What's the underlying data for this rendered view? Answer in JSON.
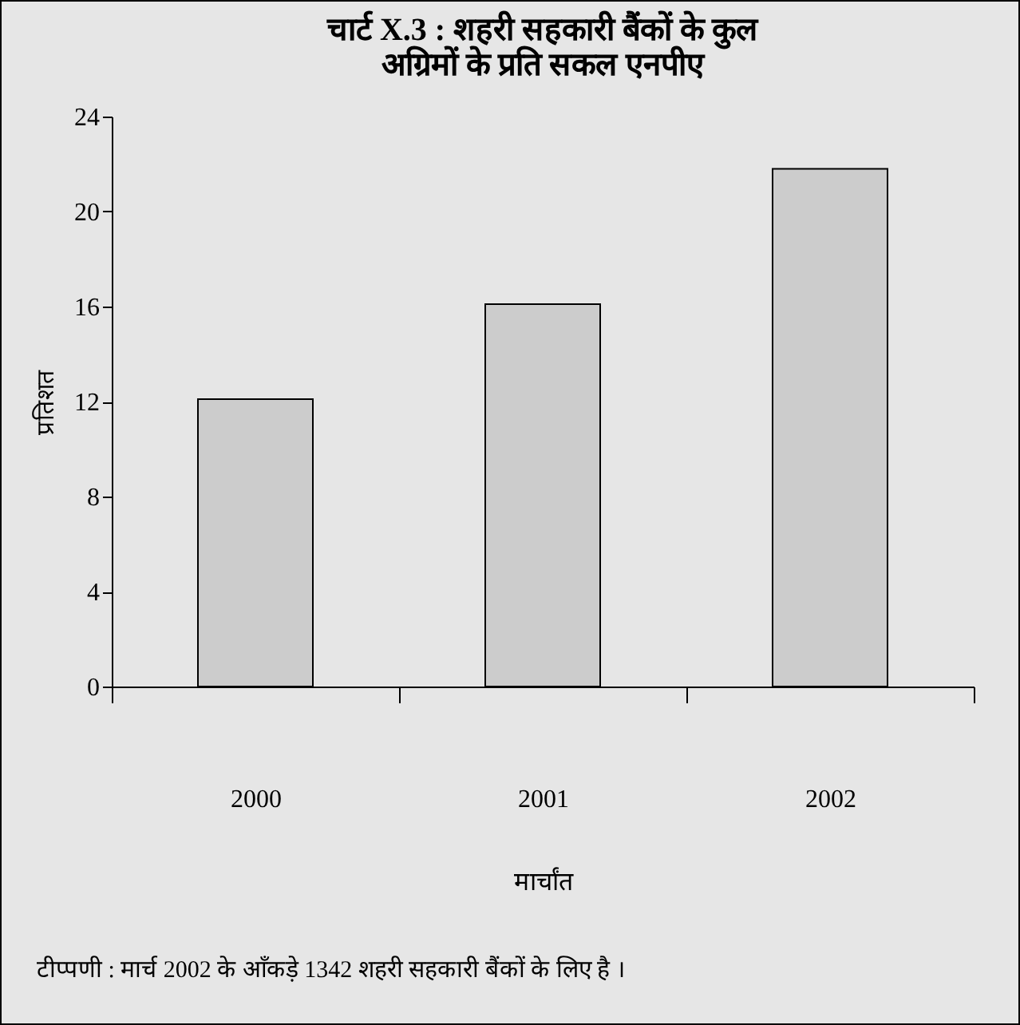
{
  "chart_data": {
    "type": "bar",
    "title": "चार्ट X.3 : शहरी सहकारी बैंकों के कुल अग्रिमों के प्रति सकल एनपीए",
    "xlabel": "मार्चांत",
    "ylabel": "प्रतिशत",
    "categories": [
      "2000",
      "2001",
      "2002"
    ],
    "values": [
      12.1,
      16.1,
      21.8
    ],
    "color": "#cccccc",
    "ylim": [
      0,
      24
    ],
    "yticks": [
      0,
      4,
      8,
      12,
      16,
      20,
      24
    ],
    "grid": false,
    "annotations": [
      "टीप्पणी : मार्च 2002  के आँकड़े 1342 शहरी सहकारी बैंकों के लिए है ।"
    ]
  }
}
